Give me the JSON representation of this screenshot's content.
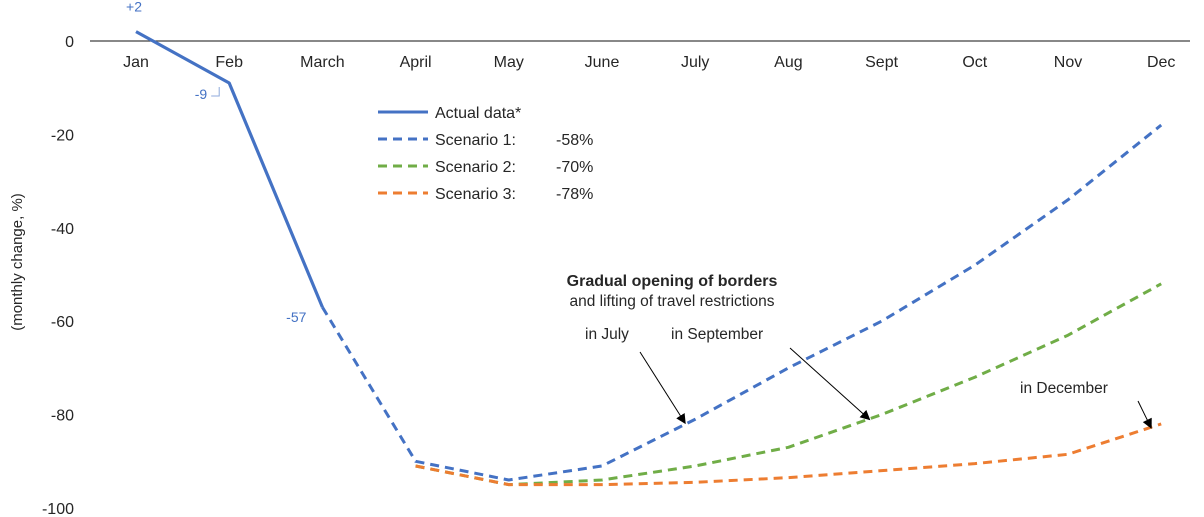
{
  "chart_data": {
    "type": "line",
    "ylabel": "(monthly change, %)",
    "ylim": [
      -100,
      0
    ],
    "yticks": [
      0,
      -20,
      -40,
      -60,
      -80,
      -100
    ],
    "categories": [
      "Jan",
      "Feb",
      "March",
      "April",
      "May",
      "June",
      "July",
      "Aug",
      "Sept",
      "Oct",
      "Nov",
      "Dec"
    ],
    "grid": false,
    "series": [
      {
        "name": "Actual data*",
        "style": "solid",
        "color": "#4472C4",
        "x": [
          "Jan",
          "Feb",
          "March"
        ],
        "values": [
          2,
          -9,
          -57
        ]
      },
      {
        "name": "Scenario 1:",
        "pct": "-58%",
        "style": "dashed",
        "color": "#4472C4",
        "x": [
          "March",
          "April",
          "May",
          "June",
          "July",
          "Aug",
          "Sept",
          "Oct",
          "Nov",
          "Dec"
        ],
        "values": [
          -57,
          -90,
          -94,
          -91,
          -81,
          -70,
          -60,
          -48,
          -34,
          -18
        ]
      },
      {
        "name": "Scenario 2:",
        "pct": "-70%",
        "style": "dashed",
        "color": "#70AD47",
        "x": [
          "April",
          "May",
          "June",
          "July",
          "Aug",
          "Sept",
          "Oct",
          "Nov",
          "Dec"
        ],
        "values": [
          -91,
          -95,
          -94,
          -91,
          -87,
          -80,
          -72,
          -63,
          -52
        ]
      },
      {
        "name": "Scenario 3:",
        "pct": "-78%",
        "style": "dashed",
        "color": "#ED7D31",
        "x": [
          "April",
          "May",
          "June",
          "July",
          "Aug",
          "Sept",
          "Oct",
          "Nov",
          "Dec"
        ],
        "values": [
          -91,
          -95,
          -95,
          -94.5,
          -93.5,
          -92,
          -90.5,
          -88.5,
          -82
        ]
      }
    ],
    "data_labels": [
      {
        "x": "Jan",
        "y": 2,
        "text": "+2"
      },
      {
        "x": "Feb",
        "y": -9,
        "text": "-9"
      },
      {
        "x": "March",
        "y": -57,
        "text": "-57"
      }
    ],
    "legend": {
      "placement": "top-center"
    },
    "annotation": {
      "title": "Gradual opening of borders",
      "subtitle": "and lifting of travel restrictions",
      "arrows": [
        {
          "text": "in July",
          "points_to": {
            "x": "July",
            "series": "Scenario 1:"
          }
        },
        {
          "text": "in September",
          "points_to": {
            "x": "Sept",
            "series": "Scenario 2:"
          }
        },
        {
          "text": "in December",
          "points_to": {
            "x": "Dec",
            "series": "Scenario 3:"
          }
        }
      ]
    }
  }
}
